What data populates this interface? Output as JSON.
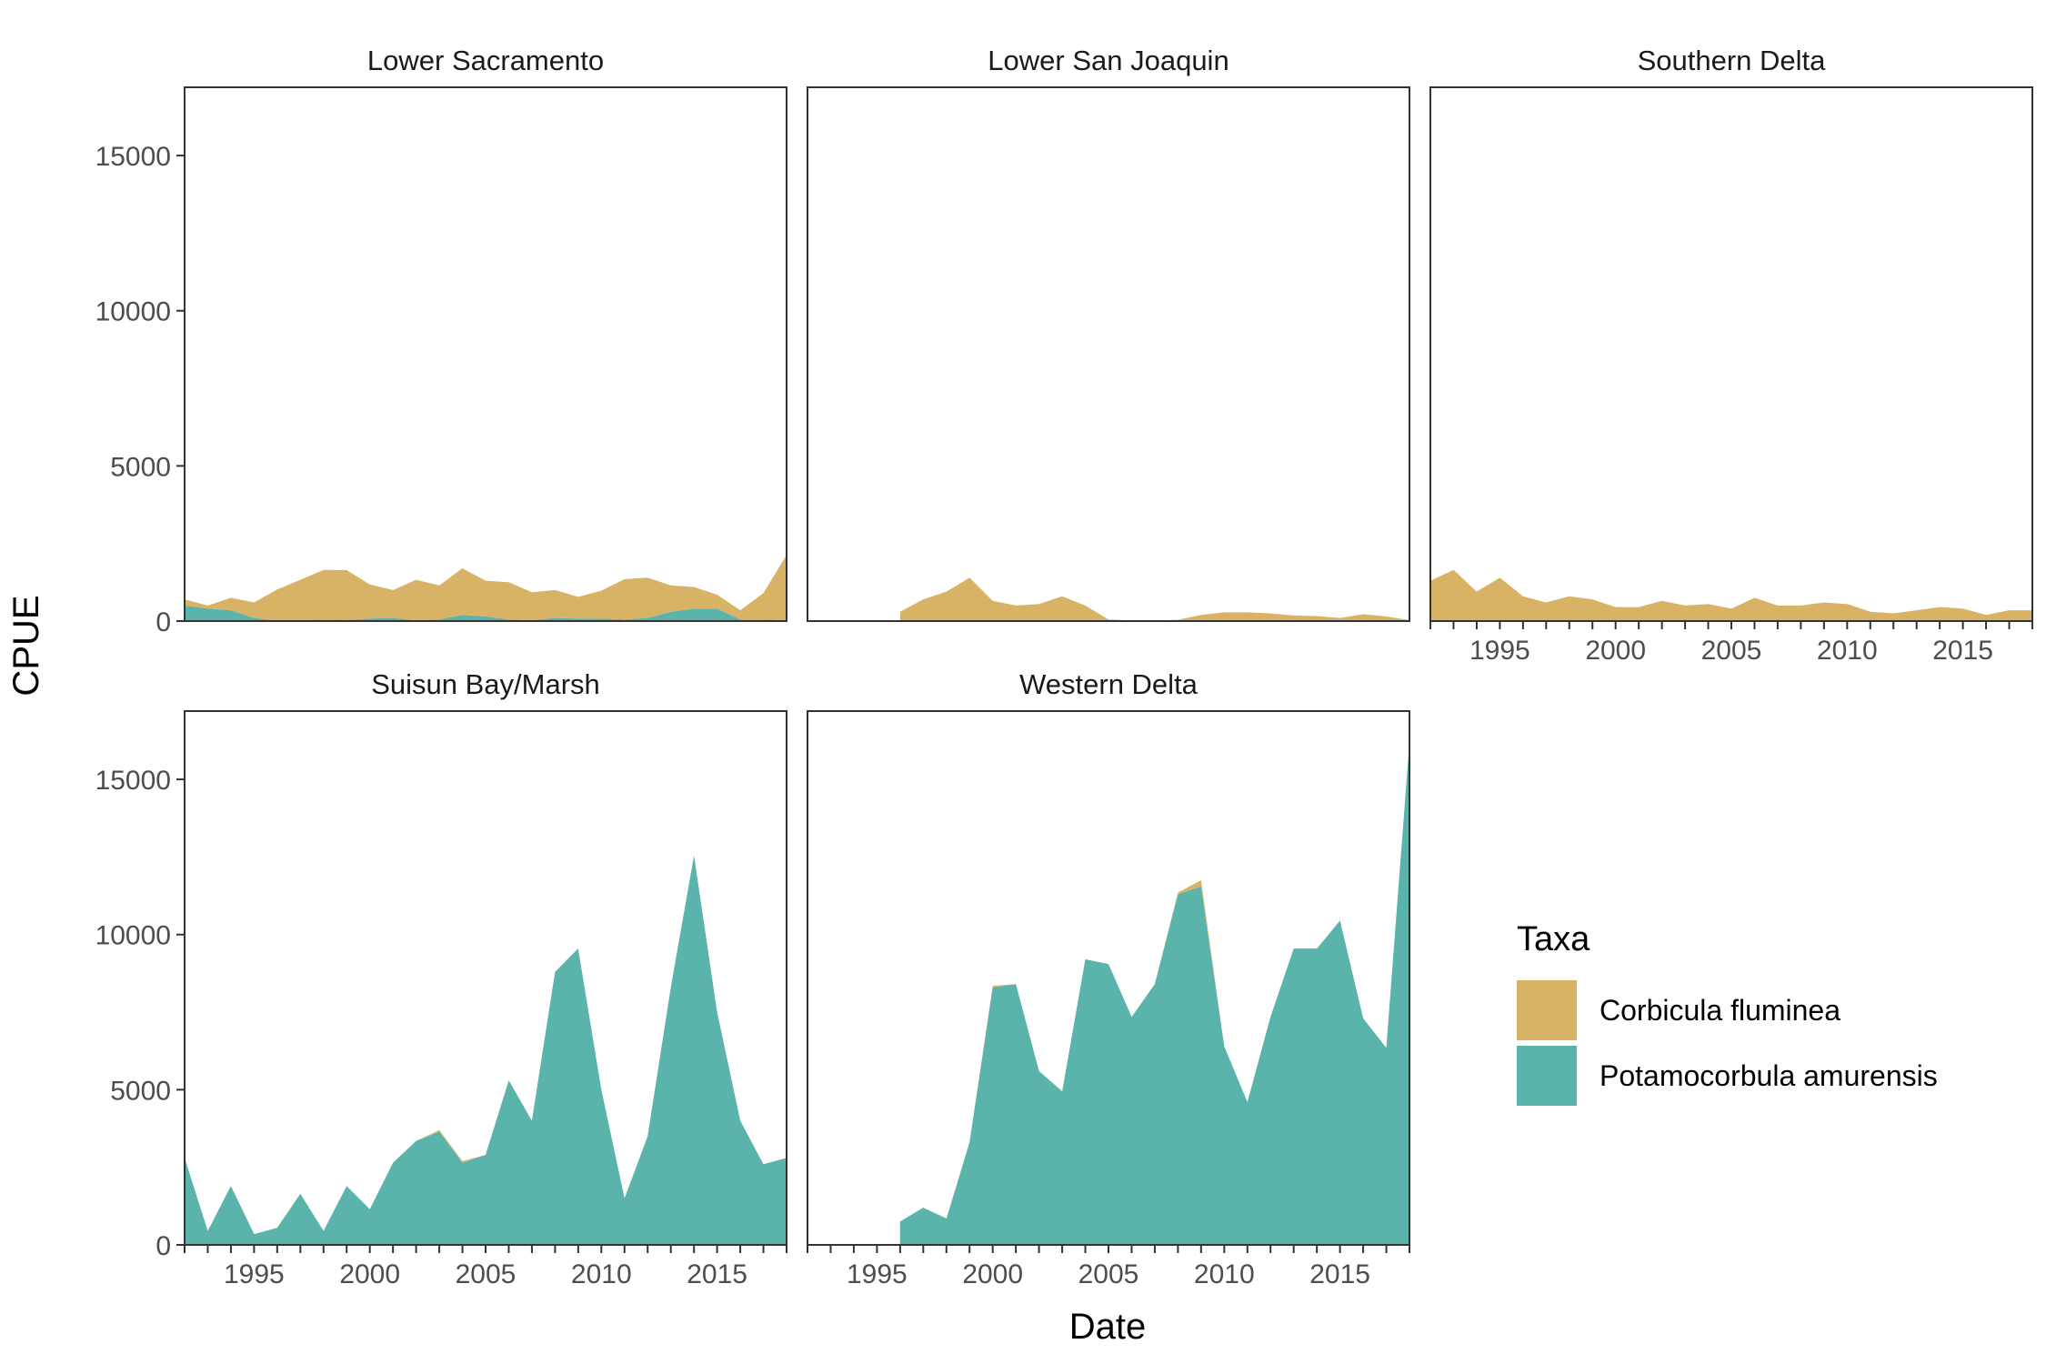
{
  "chart_data": {
    "type": "area",
    "stacked": true,
    "facets_layout": "3 columns x 2 rows",
    "xlabel": "Date",
    "ylabel": "CPUE",
    "ylim": [
      0,
      17200
    ],
    "xlim": [
      1992,
      2018
    ],
    "y_ticks": [
      0,
      5000,
      10000,
      15000
    ],
    "x_ticks": [
      1995,
      2000,
      2005,
      2010,
      2015
    ],
    "grid": false,
    "legend": {
      "title": "Taxa",
      "position": "right",
      "items": [
        {
          "label": "Corbicula fluminea",
          "color": "#D9B365"
        },
        {
          "label": "Potamocorbula amurensis",
          "color": "#5AB4AC"
        }
      ]
    },
    "panels": [
      {
        "title": "Lower Sacramento",
        "years": [
          1992,
          1993,
          1994,
          1995,
          1996,
          1997,
          1998,
          1999,
          2000,
          2001,
          2002,
          2003,
          2004,
          2005,
          2006,
          2007,
          2008,
          2009,
          2010,
          2011,
          2012,
          2013,
          2014,
          2015,
          2016,
          2017,
          2018
        ],
        "series": [
          {
            "name": "Potamocorbula amurensis",
            "values": [
              500,
              400,
              350,
              100,
              20,
              30,
              50,
              40,
              80,
              100,
              30,
              50,
              200,
              150,
              50,
              30,
              100,
              80,
              80,
              50,
              100,
              300,
              400,
              400,
              50,
              50,
              30
            ]
          },
          {
            "name": "Corbicula fluminea",
            "values": [
              200,
              100,
              400,
              500,
              1000,
              1300,
              1600,
              1600,
              1100,
              900,
              1300,
              1100,
              1500,
              1150,
              1200,
              900,
              900,
              700,
              900,
              1300,
              1300,
              850,
              700,
              450,
              300,
              850,
              2100
            ]
          }
        ]
      },
      {
        "title": "Lower San Joaquin",
        "years": [
          1996,
          1997,
          1998,
          1999,
          2000,
          2001,
          2002,
          2003,
          2004,
          2005,
          2006,
          2007,
          2008,
          2009,
          2010,
          2011,
          2012,
          2013,
          2014,
          2015,
          2016,
          2017,
          2018
        ],
        "series": [
          {
            "name": "Potamocorbula amurensis",
            "values": [
              0,
              0,
              0,
              0,
              0,
              0,
              0,
              0,
              0,
              0,
              0,
              0,
              0,
              0,
              0,
              0,
              0,
              0,
              0,
              0,
              0,
              0,
              0
            ]
          },
          {
            "name": "Corbicula fluminea",
            "values": [
              300,
              700,
              950,
              1400,
              650,
              500,
              550,
              800,
              500,
              50,
              20,
              20,
              40,
              200,
              280,
              280,
              250,
              180,
              160,
              100,
              220,
              150,
              30
            ]
          }
        ]
      },
      {
        "title": "Southern Delta",
        "years": [
          1992,
          1993,
          1994,
          1995,
          1996,
          1997,
          1998,
          1999,
          2000,
          2001,
          2002,
          2003,
          2004,
          2005,
          2006,
          2007,
          2008,
          2009,
          2010,
          2011,
          2012,
          2013,
          2014,
          2015,
          2016,
          2017,
          2018
        ],
        "series": [
          {
            "name": "Potamocorbula amurensis",
            "values": [
              0,
              0,
              0,
              0,
              0,
              0,
              0,
              0,
              0,
              0,
              0,
              0,
              0,
              0,
              0,
              0,
              0,
              0,
              0,
              0,
              0,
              0,
              0,
              0,
              0,
              0,
              0
            ]
          },
          {
            "name": "Corbicula fluminea",
            "values": [
              1300,
              1650,
              950,
              1400,
              800,
              600,
              800,
              700,
              450,
              450,
              650,
              500,
              550,
              400,
              750,
              500,
              500,
              600,
              550,
              300,
              250,
              350,
              450,
              400,
              200,
              350,
              350
            ]
          }
        ]
      },
      {
        "title": "Suisun Bay/Marsh",
        "years": [
          1992,
          1993,
          1994,
          1995,
          1996,
          1997,
          1998,
          1999,
          2000,
          2001,
          2002,
          2003,
          2004,
          2005,
          2006,
          2007,
          2008,
          2009,
          2010,
          2011,
          2012,
          2013,
          2014,
          2015,
          2016,
          2017,
          2018
        ],
        "series": [
          {
            "name": "Potamocorbula amurensis",
            "values": [
              2800,
              450,
              1900,
              350,
              550,
              1650,
              450,
              1900,
              1150,
              2650,
              3350,
              3650,
              2650,
              2900,
              5300,
              4000,
              8800,
              9550,
              5000,
              1500,
              3500,
              8300,
              12550,
              7500,
              4000,
              2600,
              2800
            ]
          },
          {
            "name": "Corbicula fluminea",
            "values": [
              0,
              0,
              0,
              0,
              0,
              0,
              0,
              0,
              0,
              0,
              0,
              50,
              50,
              0,
              0,
              0,
              0,
              0,
              0,
              0,
              0,
              0,
              0,
              0,
              0,
              0,
              0
            ]
          }
        ]
      },
      {
        "title": "Western Delta",
        "years": [
          1996,
          1997,
          1998,
          1999,
          2000,
          2001,
          2002,
          2003,
          2004,
          2005,
          2006,
          2007,
          2008,
          2009,
          2010,
          2011,
          2012,
          2013,
          2014,
          2015,
          2016,
          2017,
          2018
        ],
        "series": [
          {
            "name": "Potamocorbula amurensis",
            "values": [
              750,
              1200,
              850,
              3300,
              8300,
              8400,
              5600,
              4950,
              9200,
              9050,
              7350,
              8400,
              11300,
              11550,
              6400,
              4600,
              7350,
              9550,
              9550,
              10450,
              7300,
              6350,
              16200
            ]
          },
          {
            "name": "Corbicula fluminea",
            "values": [
              0,
              0,
              0,
              0,
              50,
              0,
              0,
              0,
              0,
              0,
              0,
              0,
              50,
              200,
              0,
              0,
              0,
              0,
              0,
              0,
              0,
              0,
              0
            ]
          }
        ]
      }
    ]
  }
}
